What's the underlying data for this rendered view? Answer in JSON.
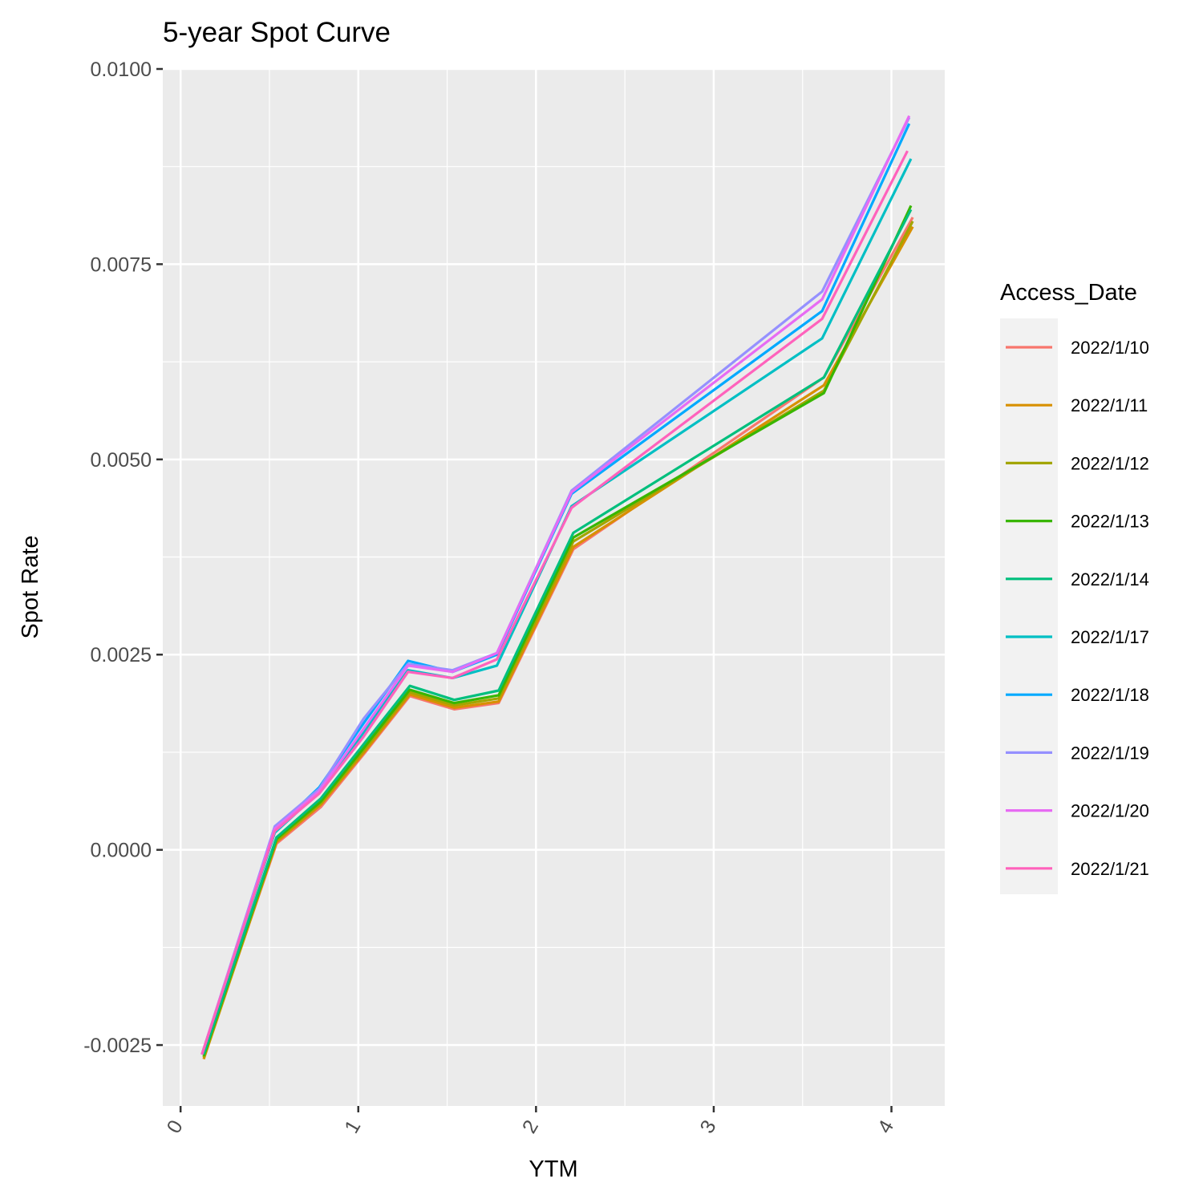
{
  "chart_data": {
    "type": "line",
    "title": "5-year Spot Curve",
    "xlabel": "YTM",
    "ylabel": "Spot Rate",
    "xlim": [
      -0.1,
      4.3
    ],
    "ylim": [
      -0.00328,
      0.01
    ],
    "x_ticks": [
      0,
      1,
      2,
      3,
      4
    ],
    "x_tick_labels": [
      "0",
      "1",
      "2",
      "3",
      "4"
    ],
    "y_ticks": [
      -0.0025,
      0.0,
      0.0025,
      0.005,
      0.0075,
      0.01
    ],
    "y_tick_labels": [
      "-0.0025",
      "0.0000",
      "0.0025",
      "0.0050",
      "0.0075",
      "0.0100"
    ],
    "grid": true,
    "legend_title": "Access_Date",
    "legend_position": "right",
    "series": [
      {
        "name": "2022/1/10",
        "color": "#F8766D",
        "x": [
          0.13,
          0.54,
          0.79,
          1.04,
          1.29,
          1.54,
          1.79,
          2.21,
          3.62,
          4.12
        ],
        "y": [
          -0.00265,
          8e-05,
          0.00055,
          0.00125,
          0.00197,
          0.0018,
          0.00188,
          0.00385,
          0.00605,
          0.0081
        ]
      },
      {
        "name": "2022/1/11",
        "color": "#D89000",
        "x": [
          0.13,
          0.54,
          0.79,
          1.04,
          1.29,
          1.54,
          1.79,
          2.21,
          3.62,
          4.12
        ],
        "y": [
          -0.00268,
          0.0001,
          0.00058,
          0.00127,
          0.00199,
          0.00182,
          0.0019,
          0.00388,
          0.00595,
          0.00798
        ]
      },
      {
        "name": "2022/1/12",
        "color": "#A3A500",
        "x": [
          0.13,
          0.54,
          0.79,
          1.04,
          1.29,
          1.54,
          1.79,
          2.21,
          3.62,
          4.12
        ],
        "y": [
          -0.00266,
          0.00012,
          0.0006,
          0.0013,
          0.00202,
          0.00185,
          0.00194,
          0.00395,
          0.00588,
          0.00805
        ]
      },
      {
        "name": "2022/1/13",
        "color": "#39B600",
        "x": [
          0.13,
          0.54,
          0.79,
          1.04,
          1.29,
          1.54,
          1.79,
          2.21,
          3.62,
          4.11
        ],
        "y": [
          -0.00264,
          0.00014,
          0.00062,
          0.00133,
          0.00205,
          0.00188,
          0.00198,
          0.004,
          0.00585,
          0.00825
        ]
      },
      {
        "name": "2022/1/14",
        "color": "#00BF7D",
        "x": [
          0.13,
          0.54,
          0.79,
          1.04,
          1.29,
          1.54,
          1.79,
          2.21,
          3.62,
          4.11
        ],
        "y": [
          -0.00262,
          0.00016,
          0.00066,
          0.00138,
          0.0021,
          0.00192,
          0.00204,
          0.00406,
          0.00605,
          0.0082
        ]
      },
      {
        "name": "2022/1/17",
        "color": "#00BFC4",
        "x": [
          0.12,
          0.53,
          0.78,
          1.03,
          1.28,
          1.53,
          1.78,
          2.2,
          3.61,
          4.11
        ],
        "y": [
          -0.00262,
          0.00022,
          0.00074,
          0.0015,
          0.0023,
          0.0022,
          0.00236,
          0.0044,
          0.00655,
          0.00885
        ]
      },
      {
        "name": "2022/1/18",
        "color": "#00A9FF",
        "x": [
          0.12,
          0.53,
          0.78,
          1.03,
          1.28,
          1.53,
          1.78,
          2.2,
          3.61,
          4.1
        ],
        "y": [
          -0.00262,
          0.00026,
          0.0008,
          0.00162,
          0.00242,
          0.00228,
          0.0025,
          0.00456,
          0.0069,
          0.0093
        ]
      },
      {
        "name": "2022/1/19",
        "color": "#9590FF",
        "x": [
          0.12,
          0.53,
          0.78,
          1.03,
          1.28,
          1.53,
          1.78,
          2.2,
          3.61,
          4.1
        ],
        "y": [
          -0.00262,
          0.0003,
          0.00078,
          0.00168,
          0.00238,
          0.0023,
          0.00252,
          0.0046,
          0.00715,
          0.00938
        ]
      },
      {
        "name": "2022/1/20",
        "color": "#E76BF3",
        "x": [
          0.12,
          0.53,
          0.78,
          1.03,
          1.28,
          1.53,
          1.78,
          2.2,
          3.61,
          4.1
        ],
        "y": [
          -0.00262,
          0.00027,
          0.00075,
          0.00155,
          0.00236,
          0.00228,
          0.00252,
          0.00458,
          0.00705,
          0.0094
        ]
      },
      {
        "name": "2022/1/21",
        "color": "#FF62BC",
        "x": [
          0.12,
          0.53,
          0.78,
          1.03,
          1.28,
          1.53,
          1.78,
          2.2,
          3.61,
          4.09
        ],
        "y": [
          -0.00262,
          0.00024,
          0.00072,
          0.00145,
          0.00228,
          0.0022,
          0.00244,
          0.00438,
          0.0068,
          0.00895
        ]
      }
    ]
  }
}
